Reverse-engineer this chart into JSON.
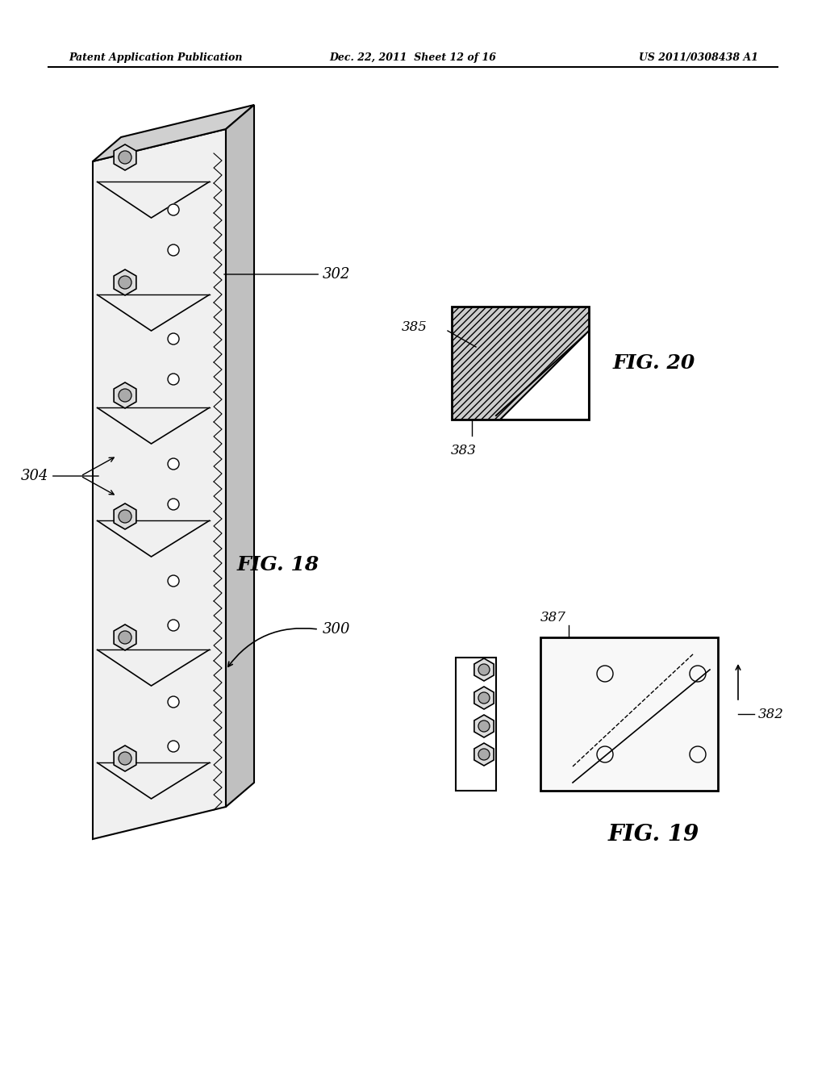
{
  "background_color": "#ffffff",
  "header_left": "Patent Application Publication",
  "header_center": "Dec. 22, 2011  Sheet 12 of 16",
  "header_right": "US 2011/0308438 A1",
  "fig18_label": "FIG. 18",
  "fig19_label": "FIG. 19",
  "fig20_label": "FIG. 20",
  "ref_300": "300",
  "ref_302": "302",
  "ref_304": "304",
  "ref_382": "382",
  "ref_383": "383",
  "ref_385": "385",
  "ref_387": "387"
}
